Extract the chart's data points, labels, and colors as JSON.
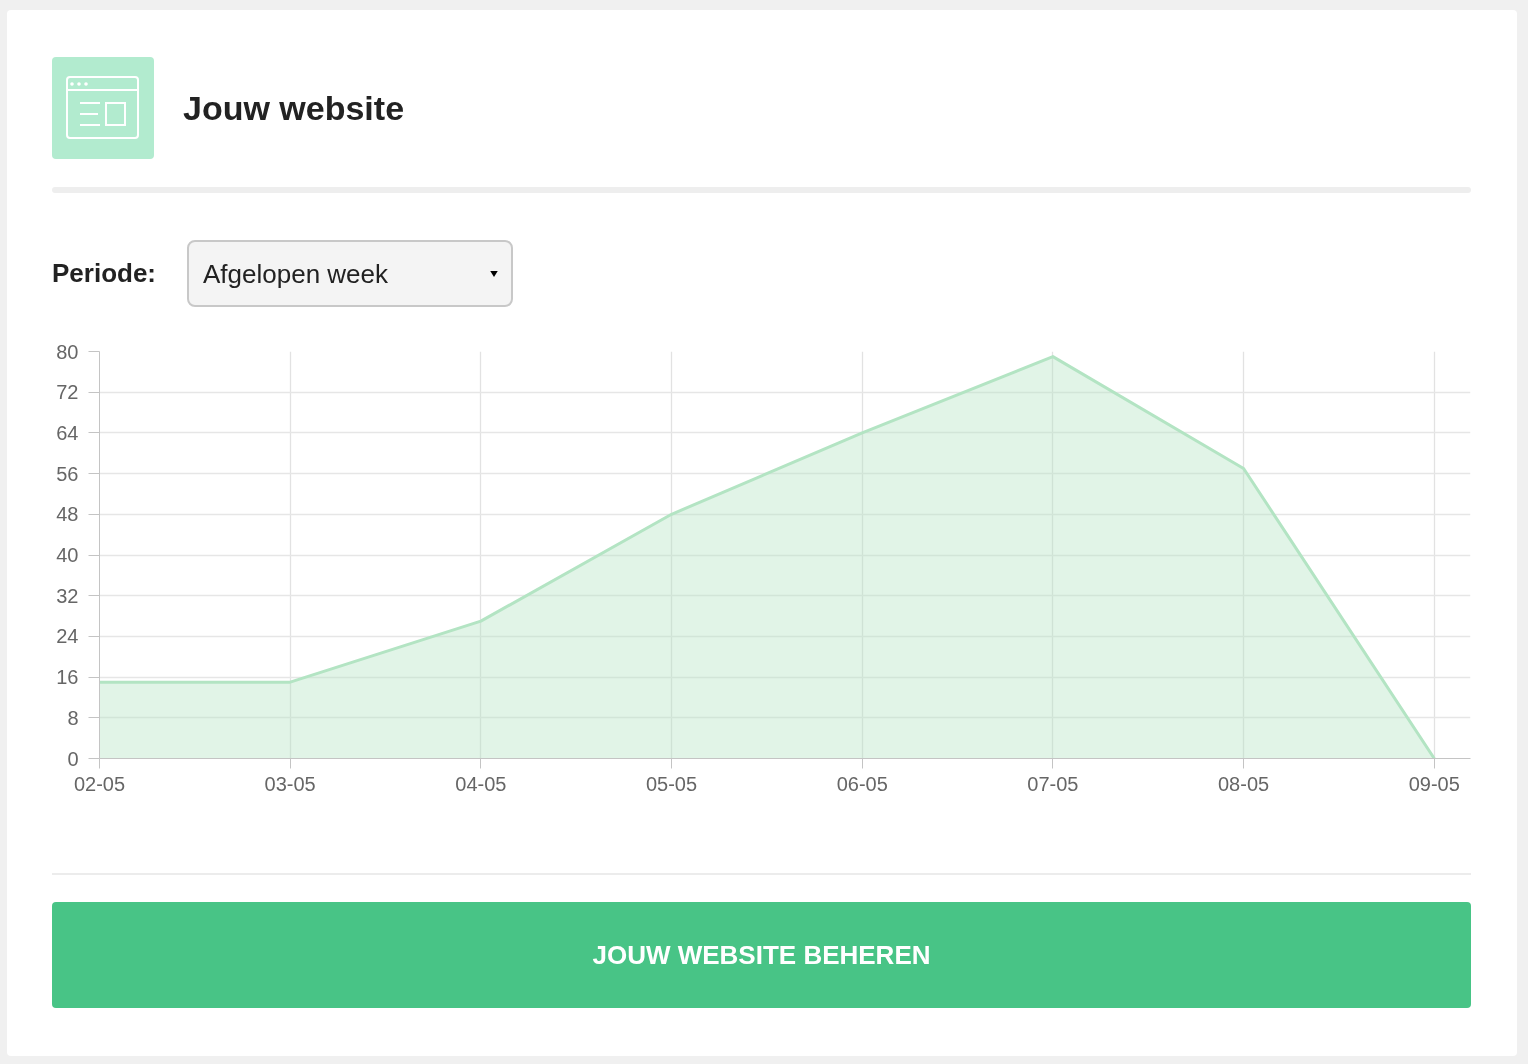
{
  "chart_data": {
    "type": "area",
    "title": "Jouw website",
    "annotations": [
      "Periode:",
      "Afgelopen week",
      "JOUW WEBSITE BEHEREN"
    ],
    "categories": [
      "02-05",
      "03-05",
      "04-05",
      "05-05",
      "06-05",
      "07-05",
      "08-05",
      "09-05"
    ],
    "series": [
      {
        "color": "#b3e4c3",
        "values": [
          15,
          15,
          27,
          48,
          64,
          79,
          57,
          0
        ]
      }
    ],
    "ylim": [
      0,
      80
    ],
    "yticks": [
      0,
      8,
      16,
      24,
      32,
      40,
      48,
      56,
      64,
      72,
      80
    ],
    "grid": true
  }
}
